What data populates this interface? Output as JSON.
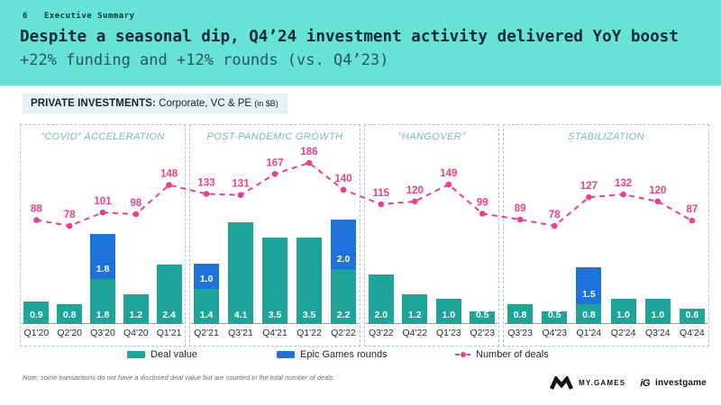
{
  "slide": {
    "page_number": "6",
    "kicker": "Executive Summary",
    "title": "Despite a seasonal dip, Q4’24 investment activity delivered YoY boost",
    "subtitle": "+22% funding and +12% rounds (vs. Q4’23)"
  },
  "chart_header": {
    "label_bold": "PRIVATE INVESTMENTS:",
    "label_regular": " Corporate, VC & PE ",
    "label_small": "(in $B)"
  },
  "chart_data": {
    "type": "bar",
    "stacked": true,
    "title": "PRIVATE INVESTMENTS: Corporate, VC & PE (in $B)",
    "ylabel": "in $B",
    "categories": [
      "Q1'20",
      "Q2'20",
      "Q3'20",
      "Q4'20",
      "Q1'21",
      "Q2'21",
      "Q3'21",
      "Q4'21",
      "Q1'22",
      "Q2'22",
      "Q3'22",
      "Q4'22",
      "Q1'23",
      "Q2'23",
      "Q3'23",
      "Q4'23",
      "Q1'24",
      "Q2'24",
      "Q3'24",
      "Q4'24"
    ],
    "series": [
      {
        "name": "Deal value",
        "type": "bar",
        "color": "#1FA49C",
        "values": [
          0.9,
          0.8,
          1.8,
          1.2,
          2.4,
          1.4,
          4.1,
          3.5,
          3.5,
          2.2,
          2.0,
          1.2,
          1.0,
          0.5,
          0.8,
          0.5,
          0.8,
          1.0,
          1.0,
          0.6
        ]
      },
      {
        "name": "Epic Games rounds",
        "type": "bar",
        "color": "#1D73DA",
        "values": [
          null,
          null,
          1.8,
          null,
          null,
          1.0,
          null,
          null,
          null,
          2.0,
          null,
          null,
          null,
          null,
          null,
          null,
          1.5,
          null,
          null,
          null
        ]
      },
      {
        "name": "Number of deals",
        "type": "line",
        "color": "#EE3D8F",
        "style": "dashed",
        "values": [
          88,
          78,
          101,
          98,
          148,
          133,
          131,
          167,
          186,
          140,
          115,
          120,
          149,
          99,
          89,
          78,
          127,
          132,
          120,
          87
        ]
      }
    ],
    "sections": [
      {
        "title": "“COVID” ACCELERATION",
        "count": 5
      },
      {
        "title": "POST-PANDEMIC GROWTH",
        "count": 5
      },
      {
        "title": "“HANGOVER”",
        "count": 4
      },
      {
        "title": "STABILIZATION",
        "count": 6
      }
    ]
  },
  "legend": [
    {
      "label": "Deal value",
      "color": "#1FA49C",
      "glyph": "rect"
    },
    {
      "label": "Epic Games rounds",
      "color": "#1D73DA",
      "glyph": "rect"
    },
    {
      "label": "Number of deals",
      "color": "#EE3D8F",
      "glyph": "line"
    }
  ],
  "note": "Note: some transactions do not have a disclosed deal value but are counted in the total number of deals",
  "footer": {
    "brand1": "MY.GAMES",
    "brand2_mark": "iG",
    "brand2": "investgame"
  }
}
